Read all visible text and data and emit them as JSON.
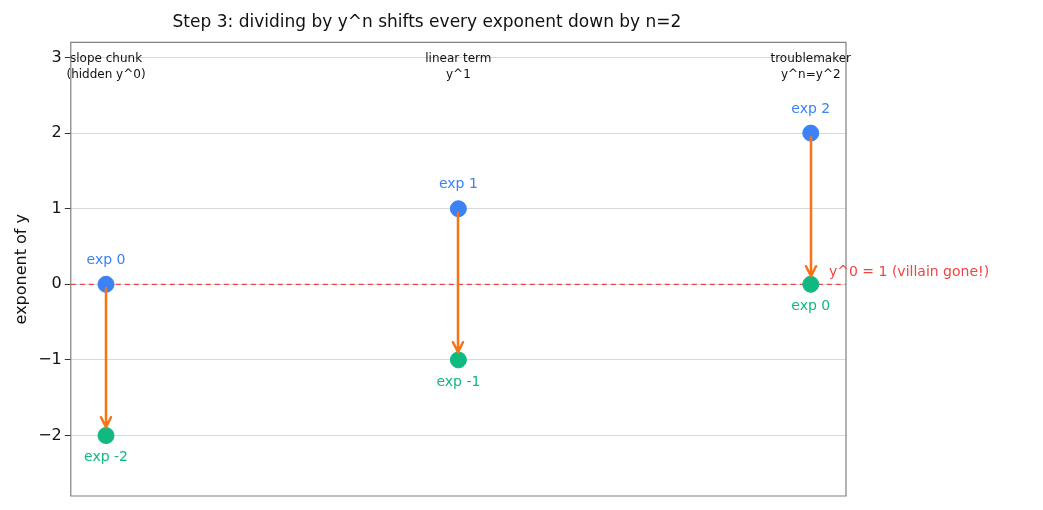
{
  "chart_data": {
    "type": "scatter",
    "title": "Step 3: dividing by y^n shifts every exponent down by n=2",
    "ylabel": "exponent of y",
    "categories": [
      "slope chunk\n(hidden y^0)",
      "linear term\ny^1",
      "troublemaker\ny^n=y^2"
    ],
    "series": [
      {
        "color": "#3b82f6",
        "values": [
          0,
          1,
          2
        ],
        "value_labels": [
          "exp 0",
          "exp 1",
          "exp 2"
        ]
      },
      {
        "color": "#10b981",
        "values": [
          -2,
          -1,
          0
        ],
        "value_labels": [
          "exp -2",
          "exp -1",
          "exp 0"
        ]
      }
    ],
    "ylim": [
      -2.8,
      3.2
    ],
    "yticks": [
      -2,
      -1,
      0,
      1,
      2,
      3
    ],
    "ref_lines": [
      {
        "axis": "y",
        "value": 0,
        "label": "y^0 = 1 (villain gone!)",
        "color": "#ef4444",
        "line_style": "dashed"
      }
    ],
    "grid": "y",
    "legend": false,
    "marker": "circle"
  }
}
